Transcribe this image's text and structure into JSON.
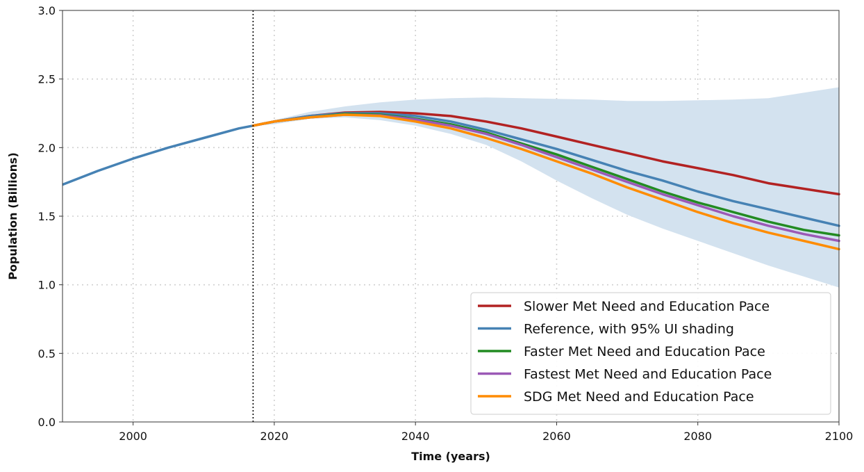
{
  "chart_data": {
    "type": "line",
    "xlabel": "Time (years)",
    "ylabel": "Population (Billions)",
    "xlim": [
      1990,
      2100
    ],
    "ylim": [
      0.0,
      3.0
    ],
    "x_ticks": [
      2000,
      2020,
      2040,
      2060,
      2080,
      2100
    ],
    "y_ticks": [
      0.0,
      0.5,
      1.0,
      1.5,
      2.0,
      2.5,
      3.0
    ],
    "y_tick_labels": [
      "0.0",
      "0.5",
      "1.0",
      "1.5",
      "2.0",
      "2.5",
      "3.0"
    ],
    "grid": true,
    "vertical_marker_x": 2017,
    "legend_position": "bottom-right",
    "history": {
      "name": "Reference, with 95% UI shading",
      "color": "#4682b4",
      "x": [
        1990,
        1995,
        2000,
        2005,
        2010,
        2015,
        2017
      ],
      "y": [
        1.73,
        1.83,
        1.92,
        2.0,
        2.07,
        2.14,
        2.16
      ]
    },
    "ui_band": {
      "x": [
        2017,
        2020,
        2025,
        2030,
        2035,
        2040,
        2045,
        2050,
        2055,
        2060,
        2065,
        2070,
        2075,
        2080,
        2085,
        2090,
        2095,
        2100
      ],
      "upper": [
        2.16,
        2.2,
        2.26,
        2.3,
        2.33,
        2.35,
        2.36,
        2.365,
        2.36,
        2.355,
        2.35,
        2.34,
        2.34,
        2.345,
        2.35,
        2.36,
        2.4,
        2.44
      ],
      "lower": [
        2.16,
        2.17,
        2.21,
        2.22,
        2.2,
        2.16,
        2.1,
        2.02,
        1.9,
        1.76,
        1.63,
        1.51,
        1.41,
        1.32,
        1.23,
        1.14,
        1.06,
        0.98
      ],
      "color": "#d3e2ef"
    },
    "x": [
      2017,
      2020,
      2025,
      2030,
      2035,
      2040,
      2045,
      2050,
      2055,
      2060,
      2065,
      2070,
      2075,
      2080,
      2085,
      2090,
      2095,
      2100
    ],
    "series": [
      {
        "name": "Slower Met Need and Education Pace",
        "color": "#b22222",
        "values": [
          2.16,
          2.19,
          2.23,
          2.255,
          2.26,
          2.25,
          2.23,
          2.19,
          2.14,
          2.08,
          2.02,
          1.96,
          1.9,
          1.85,
          1.8,
          1.74,
          1.7,
          1.66
        ]
      },
      {
        "name": "Reference, with 95% UI shading",
        "color": "#4682b4",
        "values": [
          2.16,
          2.19,
          2.23,
          2.25,
          2.25,
          2.23,
          2.19,
          2.13,
          2.06,
          1.99,
          1.91,
          1.83,
          1.76,
          1.68,
          1.61,
          1.55,
          1.49,
          1.43
        ]
      },
      {
        "name": "Faster Met Need and Education Pace",
        "color": "#228b22",
        "values": [
          2.16,
          2.19,
          2.22,
          2.245,
          2.24,
          2.21,
          2.17,
          2.11,
          2.03,
          1.95,
          1.86,
          1.77,
          1.68,
          1.6,
          1.53,
          1.46,
          1.4,
          1.36
        ]
      },
      {
        "name": "Fastest Met Need and Education Pace",
        "color": "#9b59b6",
        "values": [
          2.16,
          2.19,
          2.22,
          2.24,
          2.235,
          2.205,
          2.16,
          2.1,
          2.02,
          1.93,
          1.84,
          1.75,
          1.66,
          1.58,
          1.5,
          1.43,
          1.37,
          1.32
        ]
      },
      {
        "name": "SDG Met Need and Education Pace",
        "color": "#ff8c00",
        "values": [
          2.16,
          2.19,
          2.22,
          2.24,
          2.23,
          2.19,
          2.14,
          2.07,
          1.99,
          1.9,
          1.81,
          1.71,
          1.62,
          1.53,
          1.45,
          1.38,
          1.32,
          1.26
        ]
      }
    ],
    "legend": [
      {
        "label": "Slower Met Need and Education Pace",
        "color": "#b22222"
      },
      {
        "label": "Reference, with 95% UI shading",
        "color": "#4682b4"
      },
      {
        "label": "Faster Met Need and Education Pace",
        "color": "#228b22"
      },
      {
        "label": "Fastest Met Need and Education Pace",
        "color": "#9b59b6"
      },
      {
        "label": "SDG Met Need and Education Pace",
        "color": "#ff8c00"
      }
    ]
  }
}
